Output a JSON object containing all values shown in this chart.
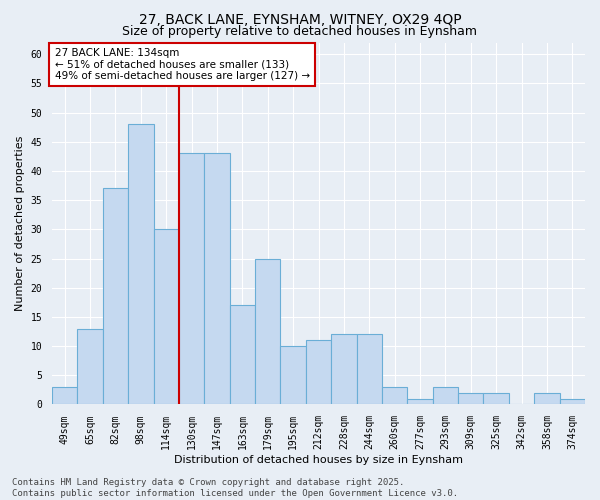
{
  "title1": "27, BACK LANE, EYNSHAM, WITNEY, OX29 4QP",
  "title2": "Size of property relative to detached houses in Eynsham",
  "xlabel": "Distribution of detached houses by size in Eynsham",
  "ylabel": "Number of detached properties",
  "categories": [
    "49sqm",
    "65sqm",
    "82sqm",
    "98sqm",
    "114sqm",
    "130sqm",
    "147sqm",
    "163sqm",
    "179sqm",
    "195sqm",
    "212sqm",
    "228sqm",
    "244sqm",
    "260sqm",
    "277sqm",
    "293sqm",
    "309sqm",
    "325sqm",
    "342sqm",
    "358sqm",
    "374sqm"
  ],
  "values": [
    3,
    13,
    37,
    48,
    30,
    43,
    43,
    17,
    25,
    10,
    11,
    12,
    12,
    3,
    1,
    3,
    2,
    2,
    0,
    2,
    1
  ],
  "bar_color": "#c5d9f0",
  "bar_edge_color": "#6aaed6",
  "red_line_color": "#cc0000",
  "red_line_index": 5,
  "annotation_text": "27 BACK LANE: 134sqm\n← 51% of detached houses are smaller (133)\n49% of semi-detached houses are larger (127) →",
  "annotation_box_facecolor": "#ffffff",
  "annotation_box_edgecolor": "#cc0000",
  "ylim": [
    0,
    62
  ],
  "yticks": [
    0,
    5,
    10,
    15,
    20,
    25,
    30,
    35,
    40,
    45,
    50,
    55,
    60
  ],
  "background_color": "#e8eef5",
  "grid_color": "#ffffff",
  "footer_text": "Contains HM Land Registry data © Crown copyright and database right 2025.\nContains public sector information licensed under the Open Government Licence v3.0.",
  "title_fontsize": 10,
  "subtitle_fontsize": 9,
  "axis_label_fontsize": 8,
  "tick_fontsize": 7,
  "annotation_fontsize": 7.5,
  "footer_fontsize": 6.5
}
